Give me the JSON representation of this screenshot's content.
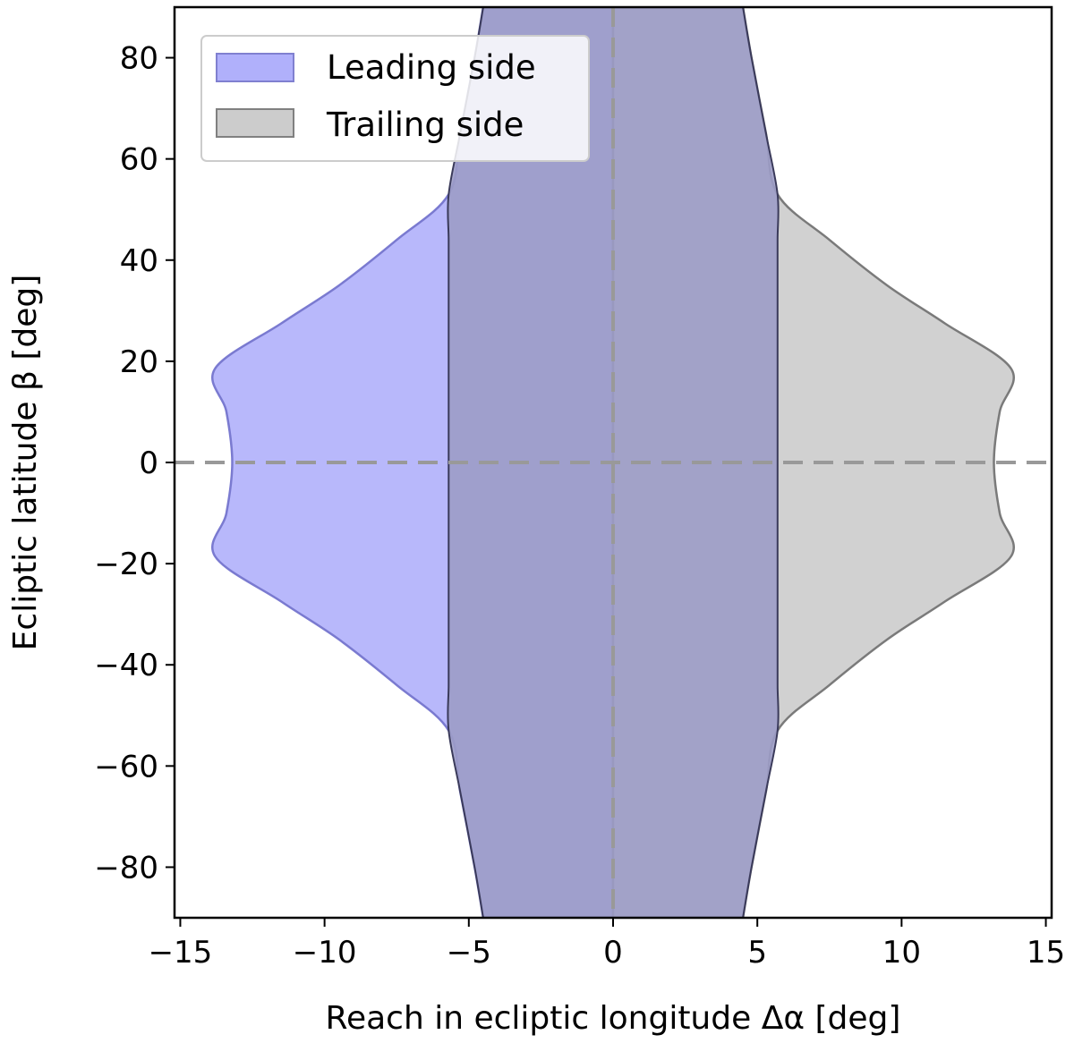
{
  "chart_data": {
    "type": "area",
    "xlabel": "Reach in ecliptic longitude  Δα [deg]",
    "ylabel": "Ecliptic latitude  β [deg]",
    "xlim": [
      -15.2,
      15.2
    ],
    "ylim": [
      -90,
      90
    ],
    "xticks": [
      -15,
      -10,
      -5,
      0,
      5,
      10,
      15
    ],
    "xtick_labels": [
      "−15",
      "−10",
      "−5",
      "0",
      "5",
      "10",
      "15"
    ],
    "yticks": [
      80,
      60,
      40,
      20,
      0,
      -20,
      -40,
      -60,
      -80
    ],
    "ytick_labels": [
      "80",
      "60",
      "40",
      "20",
      "0",
      "−20",
      "−40",
      "−60",
      "−80"
    ],
    "grid": false,
    "reference_lines": [
      {
        "orientation": "horizontal",
        "value": 0,
        "style": "dashed",
        "color": "#999999"
      },
      {
        "orientation": "vertical",
        "value": 0,
        "style": "dashed",
        "color": "#999999"
      }
    ],
    "legend": {
      "position": "top-left",
      "entries": [
        {
          "label": "Leading side",
          "color": "#b0b0fb",
          "edge": "#8080d0"
        },
        {
          "label": "Trailing side",
          "color": "#cccccc",
          "edge": "#808080"
        }
      ]
    },
    "series": [
      {
        "name": "Leading side",
        "fill": "#b0b0fb",
        "edge": "#7a7ad0",
        "boundary": [
          [
            -4.5,
            -90
          ],
          [
            -4.8,
            -80
          ],
          [
            -5.3,
            -65
          ],
          [
            -5.7,
            -53
          ],
          [
            -7.5,
            -44
          ],
          [
            -9.5,
            -35
          ],
          [
            -11.5,
            -27.5
          ],
          [
            -13.8,
            -18.5
          ],
          [
            -13.4,
            -10
          ],
          [
            -13.2,
            0
          ],
          [
            -13.4,
            10
          ],
          [
            -13.8,
            18.5
          ],
          [
            -11.5,
            27.5
          ],
          [
            -9.5,
            35
          ],
          [
            -7.5,
            44
          ],
          [
            -5.7,
            53
          ],
          [
            -5.3,
            65
          ],
          [
            -4.8,
            80
          ],
          [
            -4.5,
            90
          ]
        ]
      },
      {
        "name": "Trailing side",
        "fill": "#cccccc",
        "edge": "#7a7a7a",
        "boundary": [
          [
            4.5,
            -90
          ],
          [
            4.8,
            -80
          ],
          [
            5.3,
            -65
          ],
          [
            5.7,
            -53
          ],
          [
            7.5,
            -44
          ],
          [
            9.5,
            -35
          ],
          [
            11.5,
            -27.5
          ],
          [
            13.8,
            -18.5
          ],
          [
            13.4,
            -10
          ],
          [
            13.2,
            0
          ],
          [
            13.4,
            10
          ],
          [
            13.8,
            18.5
          ],
          [
            11.5,
            27.5
          ],
          [
            9.5,
            35
          ],
          [
            7.5,
            44
          ],
          [
            5.7,
            53
          ],
          [
            5.3,
            65
          ],
          [
            4.8,
            80
          ],
          [
            4.5,
            90
          ]
        ]
      }
    ]
  }
}
